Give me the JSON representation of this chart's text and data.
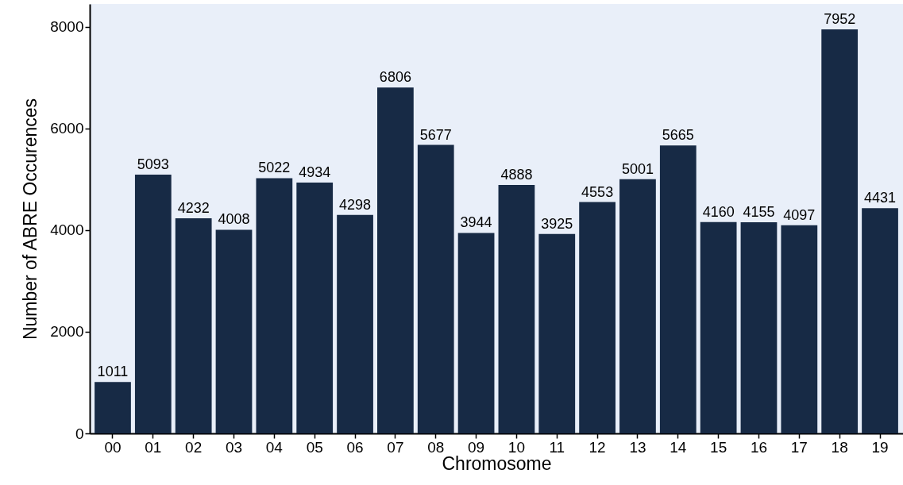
{
  "chart_data": {
    "type": "bar",
    "xlabel": "Chromosome",
    "ylabel": "Number of ABRE Occurences",
    "categories": [
      "00",
      "01",
      "02",
      "03",
      "04",
      "05",
      "06",
      "07",
      "08",
      "09",
      "10",
      "11",
      "12",
      "13",
      "14",
      "15",
      "16",
      "17",
      "18",
      "19"
    ],
    "values": [
      1011,
      5093,
      4232,
      4008,
      5022,
      4934,
      4298,
      6806,
      5677,
      3944,
      4888,
      3925,
      4553,
      5001,
      5665,
      4160,
      4155,
      4097,
      7952,
      4431
    ],
    "color": "#172a45",
    "ylim": [
      0,
      8450
    ],
    "yticks": [
      0,
      2000,
      4000,
      6000,
      8000
    ],
    "grid": false,
    "data_labels": true
  }
}
